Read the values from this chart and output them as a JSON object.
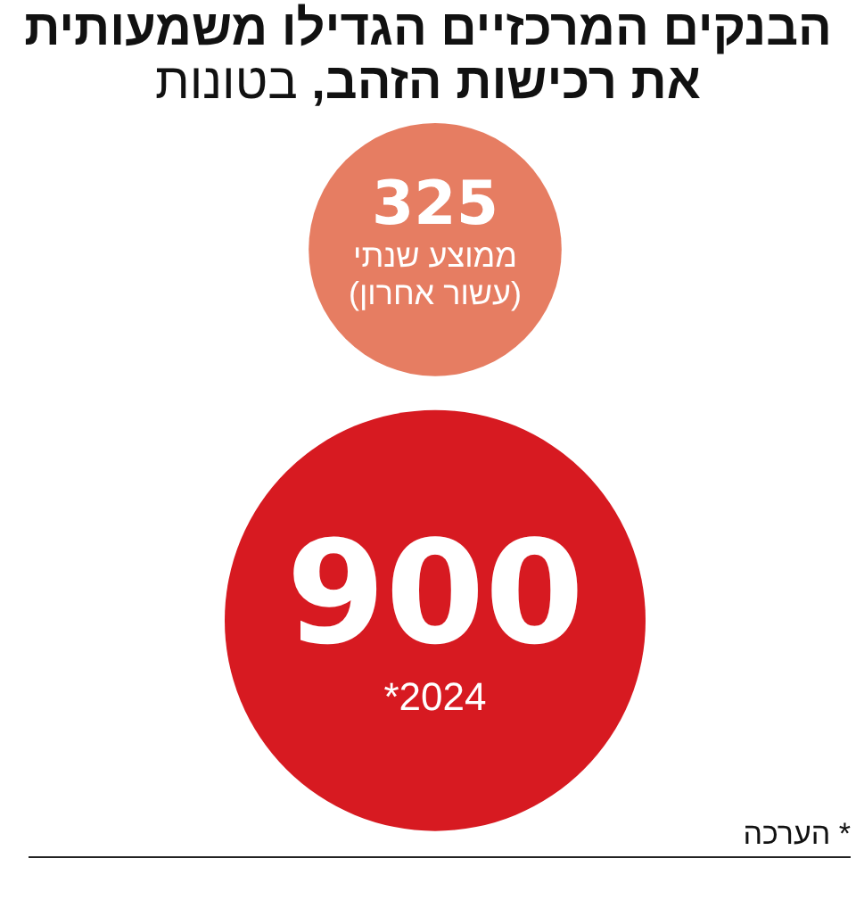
{
  "chart_data": {
    "type": "other",
    "title": "הבנקים המרכזיים הגדילו משמעותית את רכישות הזהב, בטונות",
    "categories": [
      "ממוצע שנתי (עשור אחרון)",
      "2024*"
    ],
    "values": [
      325,
      900
    ],
    "colors": [
      "#e67d62",
      "#d71a21"
    ],
    "data_labels": true,
    "annotations": [
      "* הערכה"
    ]
  }
}
